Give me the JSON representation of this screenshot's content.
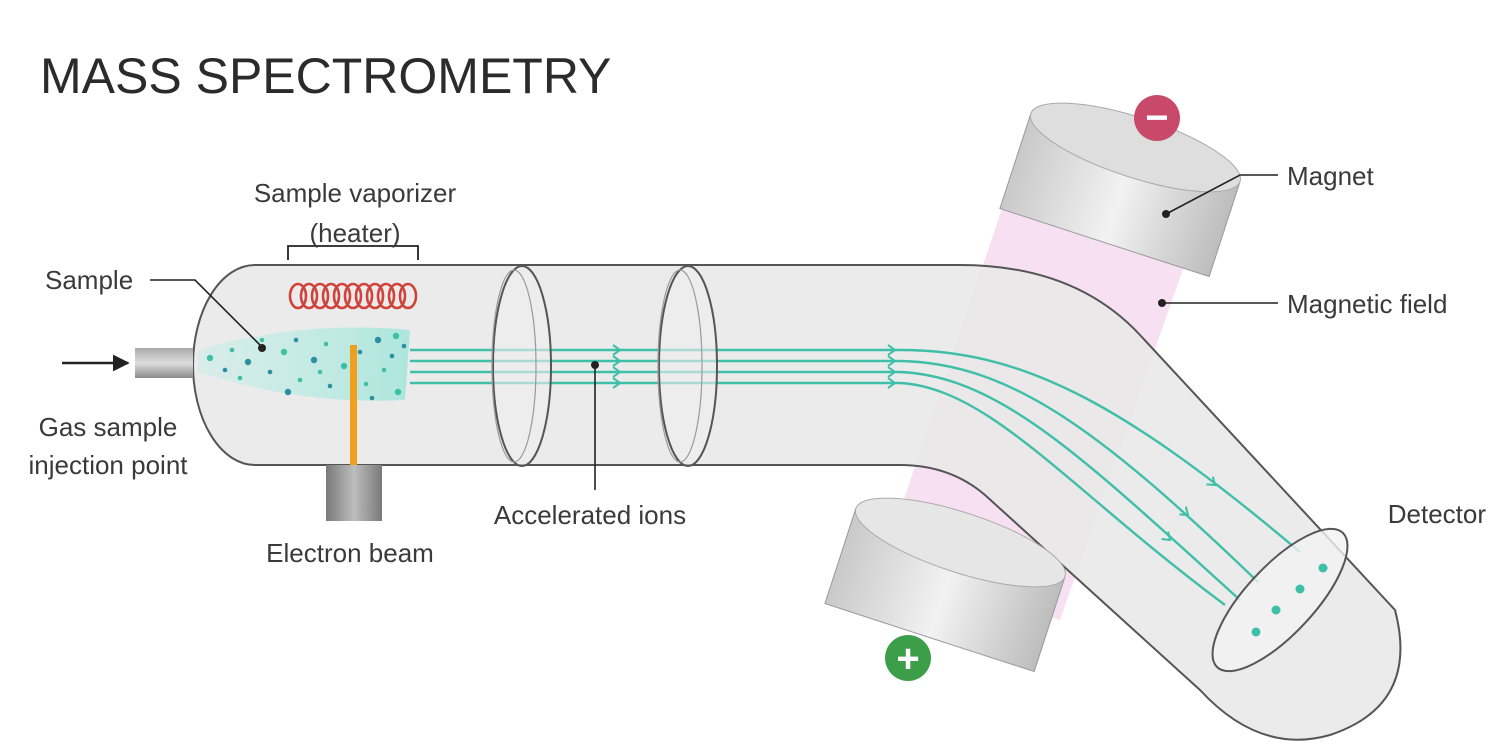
{
  "title": "MASS SPECTROMETRY",
  "labels": {
    "sample": "Sample",
    "vaporizer_line1": "Sample vaporizer",
    "vaporizer_line2": "(heater)",
    "injection_line1": "Gas sample",
    "injection_line2": "injection point",
    "electron_beam": "Electron beam",
    "accelerated_ions": "Accelerated ions",
    "magnet": "Magnet",
    "magnetic_field": "Magnetic field",
    "detector": "Detector"
  },
  "symbols": {
    "negative": "−",
    "positive": "+"
  },
  "colors": {
    "tube": "#e8e8e8",
    "tube_outline": "#555555",
    "ion_beam": "#3fbfa8",
    "heater_coil": "#d0433a",
    "electron_beam": "#f0a01e",
    "magnetic_field": "#f7d8f0",
    "negative": "#c8496a",
    "positive": "#3c9e48"
  }
}
